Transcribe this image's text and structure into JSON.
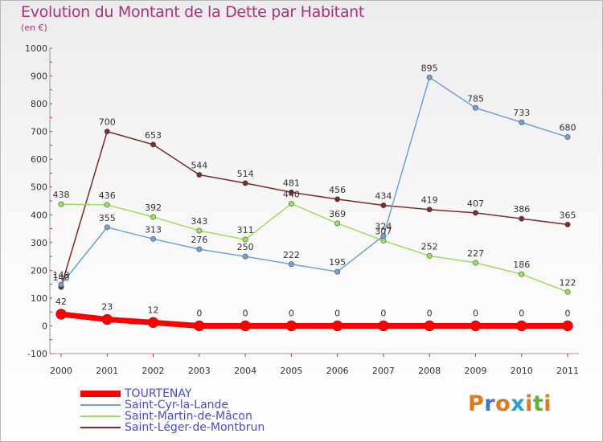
{
  "title": "Evolution du Montant de la Dette par Habitant",
  "subtitle": "(en €)",
  "logo": {
    "text": "Proxiti",
    "colors": [
      "#e07a1c",
      "#3c7ac8",
      "#e07a1c",
      "#2aa3c8",
      "#e07a1c",
      "#5ab43c",
      "#e07a1c"
    ]
  },
  "chart_data": {
    "type": "line",
    "title": "Evolution du Montant de la Dette par Habitant",
    "subtitle": "(en €)",
    "x": [
      "2000",
      "2001",
      "2002",
      "2003",
      "2004",
      "2005",
      "2006",
      "2007",
      "2008",
      "2009",
      "2010",
      "2011"
    ],
    "ylim": [
      -100,
      1000
    ],
    "yticks": [
      "-100",
      "0",
      "100",
      "200",
      "300",
      "400",
      "500",
      "600",
      "700",
      "800",
      "900",
      "1000"
    ],
    "grid": false,
    "legend_position": "bottom-left",
    "series": [
      {
        "name": "TOURTENAY",
        "color": "#ff0000",
        "values": [
          42,
          23,
          12,
          0,
          0,
          0,
          0,
          0,
          0,
          0,
          0,
          0
        ],
        "labels": [
          "42",
          "23",
          "12",
          "0",
          "0",
          "0",
          "0",
          "0",
          "0",
          "0",
          "0",
          "0"
        ]
      },
      {
        "name": "Saint-Cyr-la-Lande",
        "color": "#6fa3d4",
        "values": [
          149,
          355,
          313,
          276,
          250,
          222,
          195,
          324,
          895,
          785,
          733,
          680
        ],
        "labels": [
          "149",
          "355",
          "313",
          "276",
          "250",
          "222",
          "195",
          "324",
          "895",
          "785",
          "733",
          "680"
        ]
      },
      {
        "name": "Saint-Martin-de-Mâcon",
        "color": "#99e05f",
        "values": [
          438,
          436,
          392,
          343,
          311,
          440,
          369,
          307,
          252,
          227,
          186,
          122
        ],
        "labels": [
          "438",
          "436",
          "392",
          "343",
          "311",
          "440",
          "369",
          "307",
          "252",
          "227",
          "186",
          "122"
        ]
      },
      {
        "name": "Saint-Léger-de-Montbrun",
        "color": "#7a2b2b",
        "values": [
          140,
          700,
          653,
          544,
          514,
          481,
          456,
          434,
          419,
          407,
          386,
          365
        ],
        "labels": [
          "140",
          "700",
          "653",
          "544",
          "514",
          "481",
          "456",
          "434",
          "419",
          "407",
          "386",
          "365"
        ]
      }
    ]
  }
}
